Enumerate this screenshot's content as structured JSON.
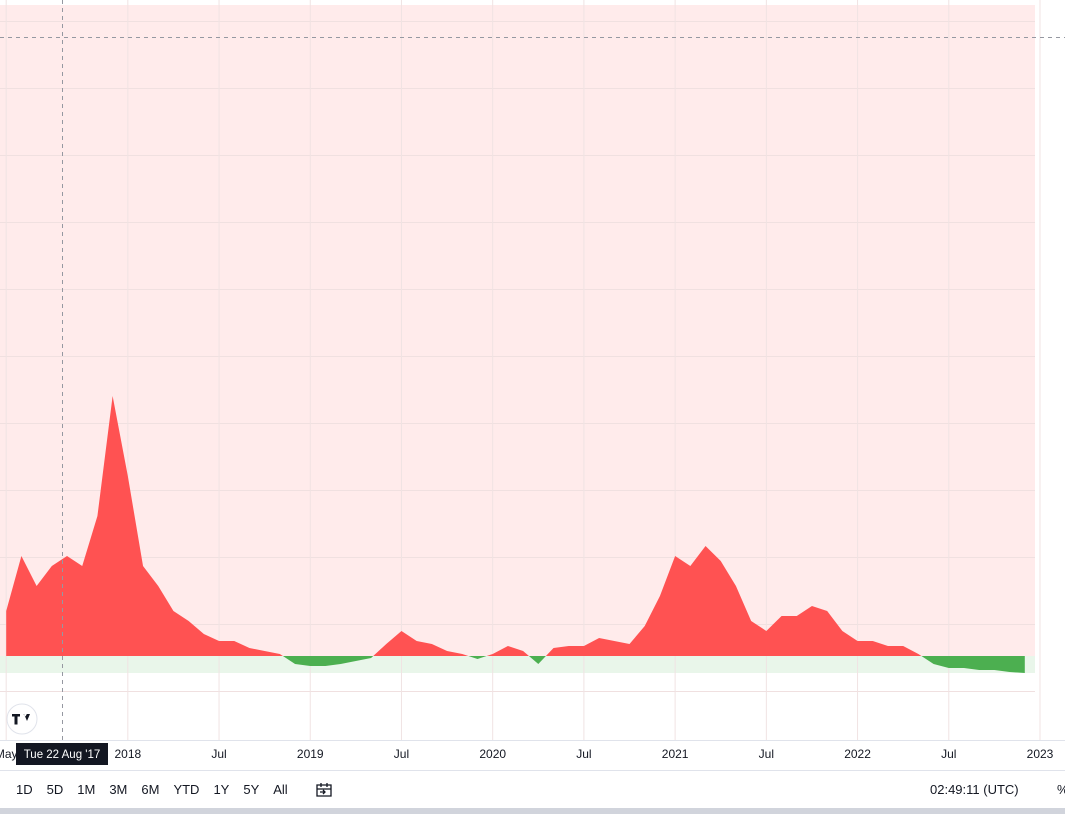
{
  "chart_data": {
    "type": "baseline",
    "x": [
      "2017-05",
      "2017-06",
      "2017-07",
      "2017-08",
      "2017-09",
      "2017-10",
      "2017-11",
      "2017-12",
      "2018-01",
      "2018-02",
      "2018-03",
      "2018-04",
      "2018-05",
      "2018-06",
      "2018-07",
      "2018-08",
      "2018-09",
      "2018-10",
      "2018-11",
      "2018-12",
      "2019-01",
      "2019-02",
      "2019-03",
      "2019-04",
      "2019-05",
      "2019-06",
      "2019-07",
      "2019-08",
      "2019-09",
      "2019-10",
      "2019-11",
      "2019-12",
      "2020-01",
      "2020-02",
      "2020-03",
      "2020-04",
      "2020-05",
      "2020-06",
      "2020-07",
      "2020-08",
      "2020-09",
      "2020-10",
      "2020-11",
      "2020-12",
      "2021-01",
      "2021-02",
      "2021-03",
      "2021-04",
      "2021-05",
      "2021-06",
      "2021-07",
      "2021-08",
      "2021-09",
      "2021-10",
      "2021-11",
      "2021-12",
      "2022-01",
      "2022-02",
      "2022-03",
      "2022-04",
      "2022-05",
      "2022-06",
      "2022-07",
      "2022-08",
      "2022-09",
      "2022-10",
      "2022-11",
      "2022-12"
    ],
    "values": [
      4.5,
      10.0,
      7.0,
      9.0,
      10.0,
      9.0,
      14.0,
      26.0,
      18.0,
      9.0,
      7.0,
      4.5,
      3.5,
      2.2,
      1.5,
      1.5,
      0.8,
      0.5,
      0.2,
      -0.8,
      -1.0,
      -1.0,
      -0.8,
      -0.5,
      -0.2,
      1.2,
      2.5,
      1.5,
      1.2,
      0.5,
      0.2,
      -0.3,
      0.2,
      1.0,
      0.5,
      -0.8,
      0.8,
      1.0,
      1.0,
      1.8,
      1.5,
      1.2,
      3.0,
      6.0,
      10.0,
      9.0,
      11.0,
      9.5,
      7.0,
      3.5,
      2.5,
      4.0,
      4.0,
      5.0,
      4.5,
      2.5,
      1.5,
      1.5,
      1.0,
      1.0,
      0.2,
      -0.8,
      -1.2,
      -1.2,
      -1.4,
      -1.4,
      -1.6,
      -1.7
    ],
    "colors": {
      "above": "#ff5252",
      "below": "#4caf50",
      "above_zone": "#ffebeb",
      "below_zone": "#e9f6ea"
    },
    "baseline": 0,
    "xlim": [
      "2017-04",
      "2023-01"
    ],
    "ylim": [
      -8.4,
      65.1
    ],
    "xticks": [
      {
        "value": "2017-05",
        "label": "May"
      },
      {
        "value": "2018-01",
        "label": "2018"
      },
      {
        "value": "2018-07",
        "label": "Jul"
      },
      {
        "value": "2019-01",
        "label": "2019"
      },
      {
        "value": "2019-07",
        "label": "Jul"
      },
      {
        "value": "2020-01",
        "label": "2020"
      },
      {
        "value": "2020-07",
        "label": "Jul"
      },
      {
        "value": "2021-01",
        "label": "2021"
      },
      {
        "value": "2021-07",
        "label": "Jul"
      },
      {
        "value": "2022-01",
        "label": "2022"
      },
      {
        "value": "2022-07",
        "label": "Jul"
      },
      {
        "value": "2023-01",
        "label": "2023"
      }
    ],
    "grid": true,
    "crosshair_label": "Tue 22 Aug '17"
  },
  "toolbar": {
    "ranges": [
      "1D",
      "5D",
      "1M",
      "3M",
      "6M",
      "YTD",
      "1Y",
      "5Y",
      "All"
    ],
    "clock": "02:49:11 (UTC)",
    "percent": "%"
  }
}
